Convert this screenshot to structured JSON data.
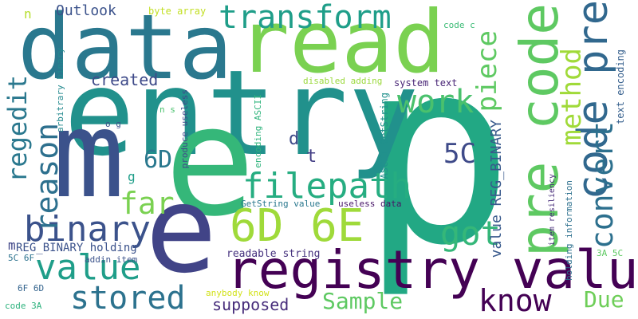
{
  "words": [
    {
      "text": "p",
      "color": "#22a884"
    },
    {
      "text": "entry",
      "color": "#21918c"
    },
    {
      "text": "read",
      "color": "#7ad151"
    },
    {
      "text": "data",
      "color": "#2a788e"
    },
    {
      "text": "e",
      "color": "#35b779"
    },
    {
      "text": "m",
      "color": "#3b528b"
    },
    {
      "text": "e",
      "color": "#414487"
    },
    {
      "text": "registry value",
      "color": "#440154"
    },
    {
      "text": "pre code",
      "color": "#5ec962"
    },
    {
      "text": "code pre",
      "color": "#31688e"
    },
    {
      "text": "6D 6E",
      "color": "#9fda3a"
    },
    {
      "text": "transform",
      "color": "#1f9e89"
    },
    {
      "text": "filepath",
      "color": "#26ad81"
    },
    {
      "text": "binary",
      "color": "#3b528b"
    },
    {
      "text": "value",
      "color": "#1f9e89"
    },
    {
      "text": "stored",
      "color": "#2c728e"
    },
    {
      "text": "reason",
      "color": "#2d708e"
    },
    {
      "text": "far",
      "color": "#7ad151"
    },
    {
      "text": "got",
      "color": "#35b779"
    },
    {
      "text": "work",
      "color": "#4ac16d"
    },
    {
      "text": "piece",
      "color": "#5ec962"
    },
    {
      "text": "method",
      "color": "#a0da39"
    },
    {
      "text": "convert",
      "color": "#2d708e"
    },
    {
      "text": "know",
      "color": "#440154"
    },
    {
      "text": "Sample",
      "color": "#5ec962"
    },
    {
      "text": "Due",
      "color": "#6ece58"
    },
    {
      "text": "regedit",
      "color": "#2a788e"
    },
    {
      "text": "6D",
      "color": "#2a788e"
    },
    {
      "text": "5C",
      "color": "#3e4a89"
    },
    {
      "text": "supposed",
      "color": "#472d7b"
    },
    {
      "text": "created",
      "color": "#3e4a89"
    },
    {
      "text": "Outlook",
      "color": "#3b528b"
    },
    {
      "text": "value REG_BINARY",
      "color": "#38598c"
    },
    {
      "text": "REG_BINARY holding",
      "color": "#3b528b"
    },
    {
      "text": "readable string",
      "color": "#46327e"
    },
    {
      "text": "n",
      "color": "#b5de2b"
    },
    {
      "text": "d",
      "color": "#3e4a89"
    },
    {
      "text": "t",
      "color": "#433e85"
    },
    {
      "text": "g",
      "color": "#1f9e89"
    },
    {
      "text": "m",
      "color": "#404688"
    },
    {
      "text": "o g",
      "color": "#3b528b"
    },
    {
      "text": "n s",
      "color": "#4ac16d"
    },
    {
      "text": "byte array",
      "color": "#c2df23"
    },
    {
      "text": "code c",
      "color": "#3bbb75"
    },
    {
      "text": "arbitrary binary",
      "color": "#23898e"
    },
    {
      "text": "produce useless",
      "color": "#3e4989"
    },
    {
      "text": "encoding ASCII",
      "color": "#2fb47c"
    },
    {
      "text": "ASCII GetString",
      "color": "#21918c"
    },
    {
      "text": "disabled adding",
      "color": "#9bd93c"
    },
    {
      "text": "system text",
      "color": "#482576"
    },
    {
      "text": "text encoding",
      "color": "#355f8d"
    },
    {
      "text": "GetString value",
      "color": "#2a788e"
    },
    {
      "text": "useless data",
      "color": "#481668"
    },
    {
      "text": "item resiliency",
      "color": "#472c7a"
    },
    {
      "text": "holding information",
      "color": "#2d708e"
    },
    {
      "text": "3A 5C",
      "color": "#5ec962"
    },
    {
      "text": "5C 6F",
      "color": "#2c728e"
    },
    {
      "text": "addin item",
      "color": "#3b528b"
    },
    {
      "text": "6F 6D",
      "color": "#33638d"
    },
    {
      "text": "anybody know",
      "color": "#d2e21b"
    },
    {
      "text": "code 3A",
      "color": "#2db27d"
    }
  ]
}
